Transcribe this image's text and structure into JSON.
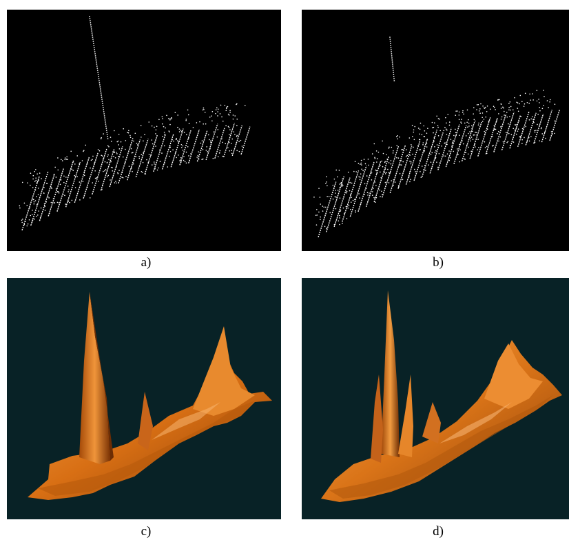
{
  "figure": {
    "panels": [
      {
        "id": "a",
        "caption": "a)",
        "content": "point-cloud",
        "background": "#000000",
        "point_color": "#ffffff"
      },
      {
        "id": "b",
        "caption": "b)",
        "content": "point-cloud",
        "background": "#000000",
        "point_color": "#ffffff"
      },
      {
        "id": "c",
        "caption": "c)",
        "content": "surface-mesh",
        "background": "#082226",
        "surface_color": "#e07a1c"
      },
      {
        "id": "d",
        "caption": "d)",
        "content": "surface-mesh",
        "background": "#082226",
        "surface_color": "#e07a1c"
      }
    ]
  }
}
